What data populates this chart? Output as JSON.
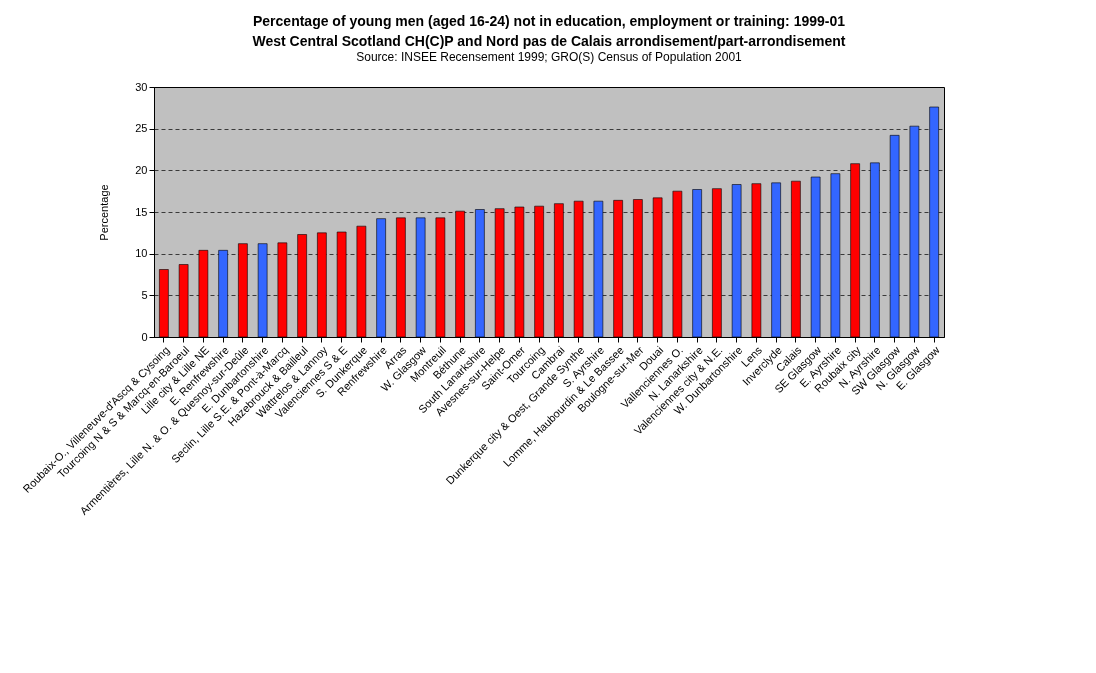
{
  "chart_data": {
    "type": "bar",
    "title": "Percentage of young men (aged 16-24) not in education, employment or training: 1999-01",
    "subtitle": "West Central Scotland CH(C)P and Nord pas de Calais arrondisement/part-arrondisement",
    "annotations": [
      "Source: INSEE Recensement 1999; GRO(S) Census of Population 2001"
    ],
    "ylabel": "Percentage",
    "categories": [
      "Roubaix-O., Villeneuve-d'Ascq & Cysoing",
      "Tourcoing N & S & Marcq-en-Baroeul",
      "Lille city & Lille NE",
      "E. Renfrewshire",
      "Armentières, Lille N. & O. & Quesnoy-sur-Deûle",
      "E. Dunbartonshire",
      "Seclin, Lille S.E. & Pont-à-Marcq",
      "Hazebrouck & Bailleul",
      "Wattrelos & Lannoy",
      "Valenciennes S & E",
      "S. Dunkerque",
      "Renfrewshire",
      "Arras",
      "W. Glasgow",
      "Montreuil",
      "Béthune",
      "South Lanarkshire",
      "Avesnes-sur-Helpe",
      "Saint-Omer",
      "Tourcoing",
      "Cambrai",
      "Dunkerque city & Oest, Grande Synthe",
      "S. Ayrshire",
      "Lomme, Haubourdin & Le Bassee",
      "Boulogne-sur-Mer",
      "Douai",
      "Vallenciennes O.",
      "N. Lanarkshire",
      "Valenciennes city & N.E.",
      "W. Dunbartonshire",
      "Lens",
      "Inverclyde",
      "Calais",
      "SE Glasgow",
      "E. Ayrshire",
      "Roubaix city",
      "N. Ayrshire",
      "SW Glasgow",
      "N. Glasgow",
      "E. Glasgow"
    ],
    "values": [
      8.1,
      8.7,
      10.4,
      10.4,
      11.2,
      11.2,
      11.3,
      12.3,
      12.5,
      12.6,
      13.3,
      14.2,
      14.3,
      14.3,
      14.3,
      15.1,
      15.3,
      15.4,
      15.6,
      15.7,
      16.0,
      16.3,
      16.3,
      16.4,
      16.5,
      16.7,
      17.5,
      17.7,
      17.8,
      18.3,
      18.4,
      18.5,
      18.7,
      19.2,
      19.6,
      20.8,
      20.9,
      24.2,
      25.3,
      27.6
    ],
    "colors": [
      "#ff0000",
      "#ff0000",
      "#ff0000",
      "#3366ff",
      "#ff0000",
      "#3366ff",
      "#ff0000",
      "#ff0000",
      "#ff0000",
      "#ff0000",
      "#ff0000",
      "#3366ff",
      "#ff0000",
      "#3366ff",
      "#ff0000",
      "#ff0000",
      "#3366ff",
      "#ff0000",
      "#ff0000",
      "#ff0000",
      "#ff0000",
      "#ff0000",
      "#3366ff",
      "#ff0000",
      "#ff0000",
      "#ff0000",
      "#ff0000",
      "#3366ff",
      "#ff0000",
      "#3366ff",
      "#ff0000",
      "#3366ff",
      "#ff0000",
      "#3366ff",
      "#3366ff",
      "#ff0000",
      "#3366ff",
      "#3366ff",
      "#3366ff",
      "#3366ff"
    ],
    "ylim": [
      0,
      30
    ],
    "yticks": [
      0,
      5,
      10,
      15,
      20,
      25,
      30
    ],
    "grid": "y"
  }
}
